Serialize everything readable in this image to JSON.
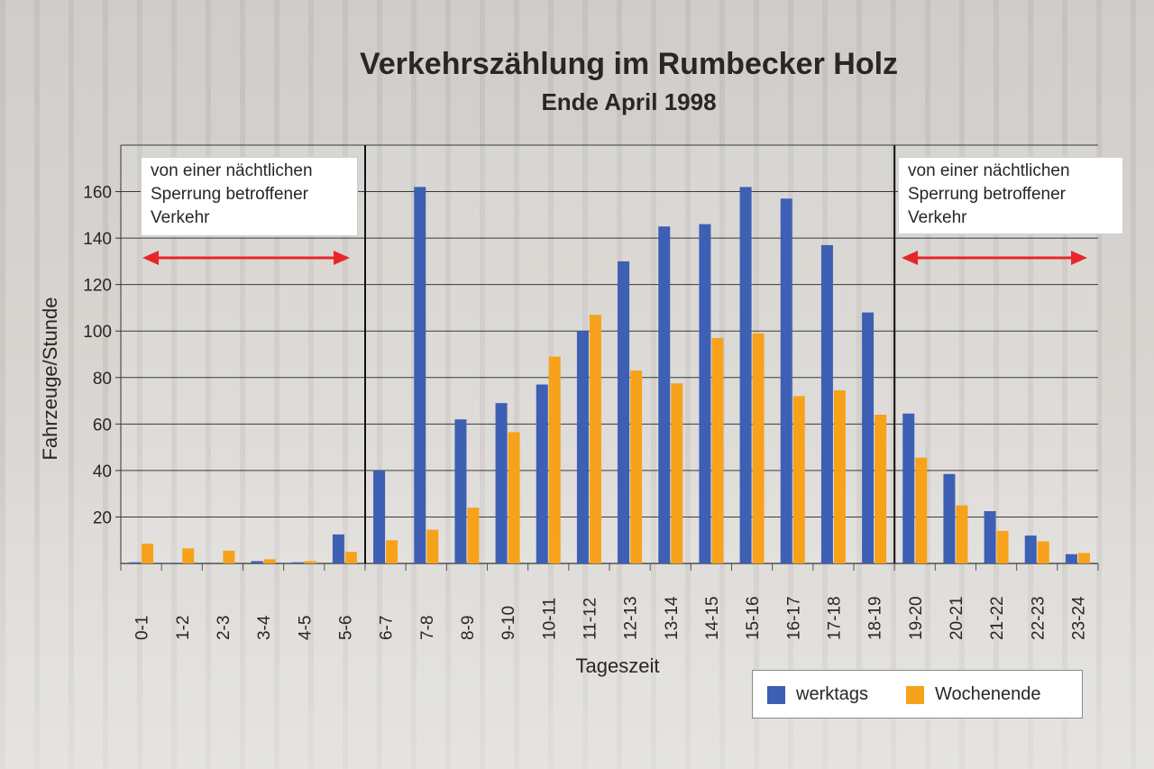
{
  "chart_data": {
    "type": "bar",
    "title": "Verkehrszählung im Rumbecker Holz",
    "subtitle": "Ende April 1998",
    "xlabel": "Tageszeit",
    "ylabel": "Fahrzeuge/Stunde",
    "ylim": [
      0,
      180
    ],
    "yticks": [
      20,
      40,
      60,
      80,
      100,
      120,
      140,
      160
    ],
    "grid": true,
    "legend_position": "bottom-right",
    "categories": [
      "0-1",
      "1-2",
      "2-3",
      "3-4",
      "4-5",
      "5-6",
      "6-7",
      "7-8",
      "8-9",
      "9-10",
      "10-11",
      "11-12",
      "12-13",
      "13-14",
      "14-15",
      "15-16",
      "16-17",
      "17-18",
      "18-19",
      "19-20",
      "20-21",
      "21-22",
      "22-23",
      "23-24"
    ],
    "series": [
      {
        "name": "werktags",
        "color": "#3d5fb4",
        "values": [
          0.5,
          0.3,
          0,
          1,
          0.5,
          12.5,
          40,
          162,
          62,
          69,
          77,
          100,
          130,
          145,
          146,
          162,
          157,
          137,
          108,
          64.5,
          38.5,
          22.5,
          12,
          4
        ]
      },
      {
        "name": "Wochenende",
        "color": "#f7a21b",
        "values": [
          8.5,
          6.5,
          5.5,
          1.8,
          1,
          5,
          10,
          14.5,
          24,
          56.5,
          89,
          107,
          83,
          77.5,
          97,
          99,
          72,
          74.5,
          64,
          45.5,
          25,
          14,
          9.5,
          4.5
        ]
      }
    ],
    "annotations": [
      {
        "text": "von einer nächtlichen Sperrung betroffener Verkehr",
        "range": [
          "0-1",
          "5-6"
        ]
      },
      {
        "text": "von einer nächtlichen Sperrung betroffener Verkehr",
        "range": [
          "19-20",
          "23-24"
        ]
      }
    ]
  }
}
